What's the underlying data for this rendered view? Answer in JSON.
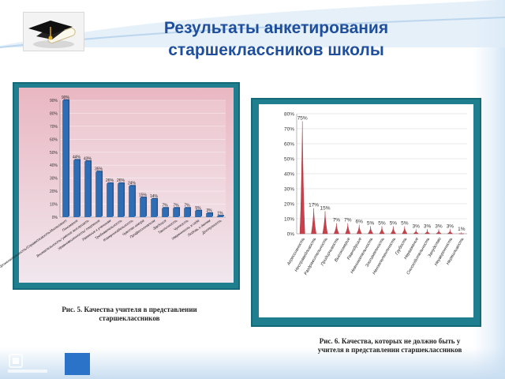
{
  "title": {
    "line1": "Результаты анкетирования",
    "line2": "старшеклассников школы"
  },
  "logo": {
    "icon": "graduation-cap-diploma-icon"
  },
  "captions": {
    "fig5": [
      "Рис. 5. Качества учителя в представлении",
      "старшеклассников"
    ],
    "fig6": [
      "Рис. 6. Качества, которых не должно быть у",
      "учителя в представлении старшеклассников"
    ]
  },
  "footer": {
    "brand_icon": "powerpoint-logo-icon"
  },
  "colors": {
    "title": "#1f4f9c",
    "frame": "#1f7f8e",
    "bar": "#2e6db4",
    "cone": "#c9404a"
  },
  "chart_data": [
    {
      "type": "bar",
      "ylim": [
        0,
        90
      ],
      "ytick_step": 10,
      "value_labels": [
        "90%",
        "44%",
        "43%",
        "35%",
        "26%",
        "26%",
        "24%",
        "15%",
        "14%",
        "7%",
        "7%",
        "7%",
        "5%",
        "3%",
        "1%"
      ],
      "values": [
        90,
        44,
        43,
        35,
        26,
        26,
        24,
        15,
        14,
        7,
        7,
        7,
        5,
        3,
        1
      ],
      "categories": [
        "Доброжелательность/Справедливость/Интеллект",
        "Понимание",
        "Внимательность/ умение выслушать",
        "Уравновешенность/ терпение",
        "Уважение к ученикам",
        "Требовательность",
        "Коммуникабельность",
        "Чувство юмора",
        "Профессионализм",
        "Эрудиция",
        "Тактичность",
        "Чуткость",
        "Уверенность в себе",
        "Любовь к детям",
        "Доступность"
      ]
    },
    {
      "type": "bar",
      "style": "cone",
      "ylim": [
        0,
        80
      ],
      "ytick_step": 10,
      "value_labels": [
        "75%",
        "17%",
        "15%",
        "7%",
        "7%",
        "6%",
        "5%",
        "5%",
        "5%",
        "5%",
        "3%",
        "3%",
        "3%",
        "3%",
        "1%"
      ],
      "values": [
        75,
        17,
        15,
        7,
        7,
        6,
        5,
        5,
        5,
        5,
        3,
        3,
        3,
        3,
        1
      ],
      "categories": [
        "Агрессивность",
        "Несправедливость",
        "Раздражительность",
        "Придирчивость",
        "Высокомерие",
        "Равнодушие",
        "Невнимательность",
        "Злопамятность",
        "Некомпетентность",
        "Грубость",
        "Неуважение",
        "Снисходительность",
        "Занудство",
        "Неуверенность",
        "Неряшливость"
      ]
    }
  ]
}
